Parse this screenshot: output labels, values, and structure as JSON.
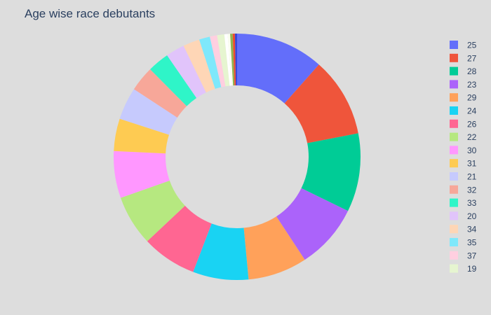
{
  "chart_data": {
    "type": "pie",
    "hole": true,
    "title": "Age wise race debutants",
    "sort": "descending",
    "direction": "clockwise",
    "slices": [
      {
        "label": "25",
        "value": 12.2,
        "color": "#636efa"
      },
      {
        "label": "27",
        "value": 11.0,
        "color": "#ef553b"
      },
      {
        "label": "28",
        "value": 10.9,
        "color": "#00cc96"
      },
      {
        "label": "23",
        "value": 9.0,
        "color": "#ab63fa"
      },
      {
        "label": "29",
        "value": 8.2,
        "color": "#ffa15a"
      },
      {
        "label": "24",
        "value": 7.7,
        "color": "#19d3f3"
      },
      {
        "label": "26",
        "value": 7.6,
        "color": "#ff6692"
      },
      {
        "label": "22",
        "value": 7.0,
        "color": "#b6e880"
      },
      {
        "label": "30",
        "value": 6.5,
        "color": "#ff97ff"
      },
      {
        "label": "31",
        "value": 4.5,
        "color": "#fecb52"
      },
      {
        "label": "21",
        "value": 4.5,
        "color": "#c6cafd"
      },
      {
        "label": "32",
        "value": 3.5,
        "color": "#f7a799"
      },
      {
        "label": "33",
        "value": 3.0,
        "color": "#2ff5c8"
      },
      {
        "label": "20",
        "value": 2.6,
        "color": "#e1c4fb"
      },
      {
        "label": "34",
        "value": 2.3,
        "color": "#fed6b6"
      },
      {
        "label": "35",
        "value": 1.5,
        "color": "#7fe8fb"
      },
      {
        "label": "37",
        "value": 1.0,
        "color": "#ffcfe0"
      },
      {
        "label": "19",
        "value": 1.0,
        "color": "#e6f5d0"
      },
      {
        "label": "",
        "value": 0.45,
        "color": "#ffffff",
        "in_legend": false
      },
      {
        "label": "",
        "value": 0.35,
        "color": "#fafdf0",
        "in_legend": false
      },
      {
        "label": "",
        "value": 0.35,
        "color": "#8fb34f",
        "in_legend": false
      },
      {
        "label": "",
        "value": 0.3,
        "color": "#f04a2c",
        "in_legend": false
      },
      {
        "label": "",
        "value": 0.3,
        "color": "#3b49d6",
        "in_legend": false
      }
    ],
    "legend_position": "right",
    "background": "#dddddd"
  }
}
